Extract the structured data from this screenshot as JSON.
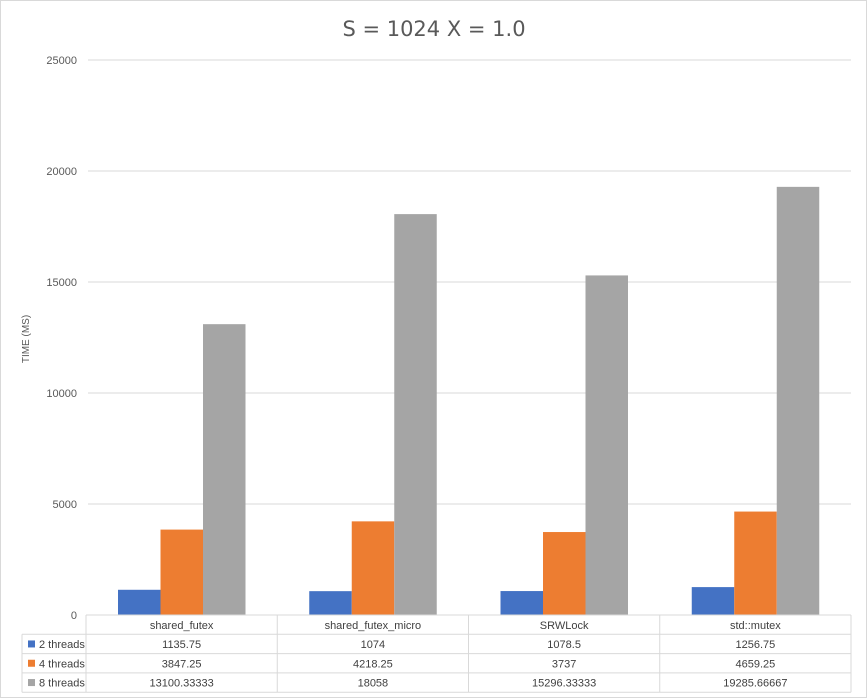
{
  "chart_data": {
    "type": "bar",
    "title": "S = 1024  X = 1.0",
    "xlabel": "",
    "ylabel": "TIME (MS)",
    "ylim": [
      0,
      25000
    ],
    "yticks": [
      "0",
      "5000",
      "10000",
      "15000",
      "20000",
      "25000"
    ],
    "grid": true,
    "legend": "data-table",
    "categories": [
      "shared_futex",
      "shared_futex_micro",
      "SRWLock",
      "std::mutex"
    ],
    "series": [
      {
        "name": "2 threads",
        "color": "#4472c4",
        "values": [
          1135.75,
          1074,
          1078.5,
          1256.75
        ],
        "labels": [
          "1135.75",
          "1074",
          "1078.5",
          "1256.75"
        ]
      },
      {
        "name": "4 threads",
        "color": "#ed7d31",
        "values": [
          3847.25,
          4218.25,
          3737,
          4659.25
        ],
        "labels": [
          "3847.25",
          "4218.25",
          "3737",
          "4659.25"
        ]
      },
      {
        "name": "8 threads",
        "color": "#a5a5a5",
        "values": [
          13100.33333,
          18058,
          15296.33333,
          19285.66667
        ],
        "labels": [
          "13100.33333",
          "18058",
          "15296.33333",
          "19285.66667"
        ]
      }
    ]
  }
}
